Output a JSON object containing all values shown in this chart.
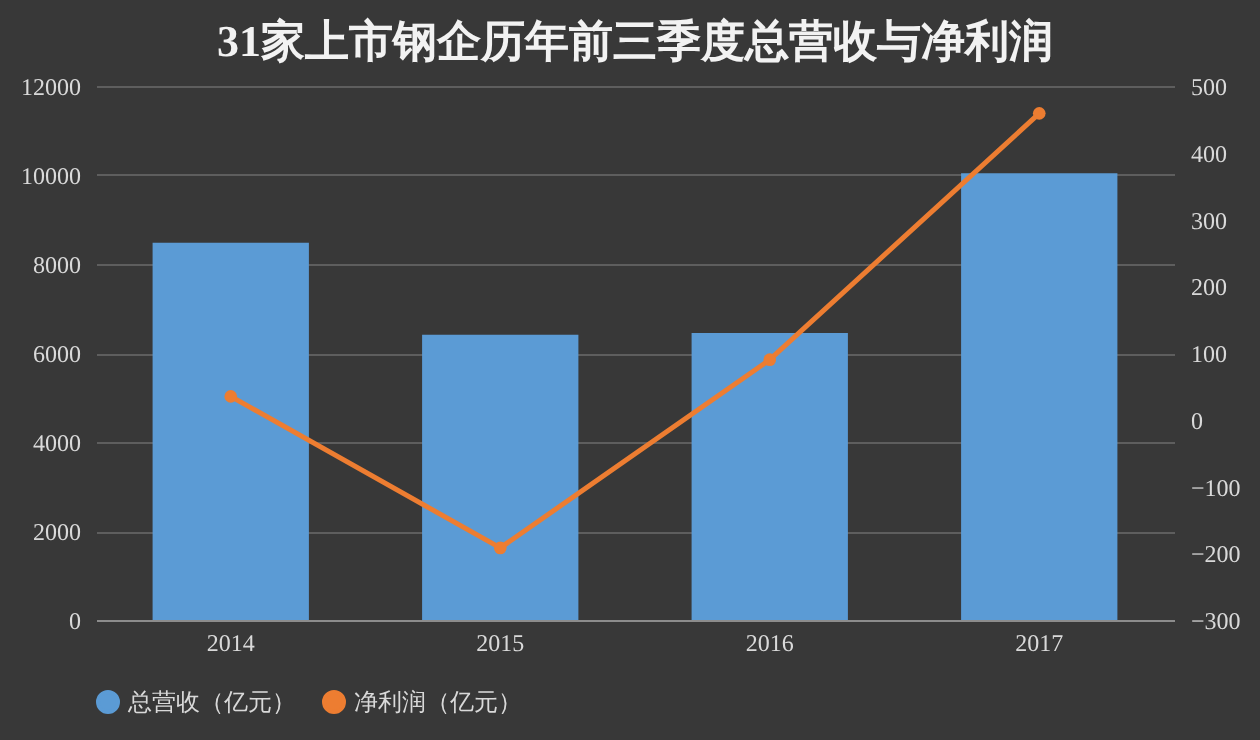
{
  "chart_data": {
    "type": "bar",
    "title": "31家上市钢企历年前三季度总营收与净利润",
    "categories": [
      "2014",
      "2015",
      "2016",
      "2017"
    ],
    "series": [
      {
        "name": "总营收（亿元）",
        "color": "#5b9bd5",
        "values": [
          8480,
          6410,
          6450,
          10040
        ]
      },
      {
        "name": "净利润（亿元）",
        "type": "line",
        "axis": "y2",
        "color": "#ed7d31",
        "marker": "circle",
        "values": [
          35,
          -192,
          90,
          459
        ]
      }
    ],
    "ylim": [
      0,
      12000
    ],
    "yticks": [
      0,
      2000,
      4000,
      6000,
      8000,
      10000,
      12000
    ],
    "y2lim": [
      -300,
      500
    ],
    "y2ticks": [
      -300,
      -200,
      -100,
      0,
      100,
      200,
      300,
      400,
      500
    ],
    "grid": "y",
    "legend": "bottom"
  }
}
